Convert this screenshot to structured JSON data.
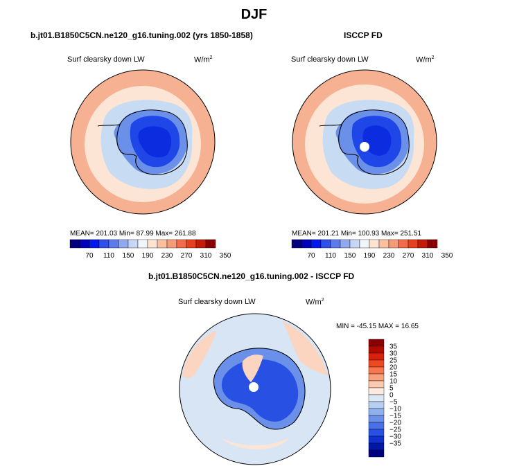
{
  "main_title": "DJF",
  "panels": [
    {
      "title": "b.jt01.B1850C5CN.ne120_g16.tuning.002 (yrs 1850-1858)",
      "field_label": "Surf clearsky down LW",
      "units_base": "W/m",
      "units_exp": "2",
      "stats": "MEAN= 201.03   Min=  87.99   Max= 261.88"
    },
    {
      "title": "ISCCP FD",
      "field_label": "Surf clearsky down LW",
      "units_base": "W/m",
      "units_exp": "2",
      "stats": "MEAN= 201.21   Min= 100.93   Max= 251.51"
    },
    {
      "title": "b.jt01.B1850C5CN.ne120_g16.tuning.002 - ISCCP FD",
      "field_label": "Surf clearsky down LW",
      "units_base": "W/m",
      "units_exp": "2",
      "stats": "MIN = -45.15  MAX =  16.65"
    }
  ],
  "colorbar_main": {
    "colors": [
      "#00007f",
      "#0000b8",
      "#0018e8",
      "#2e4fe8",
      "#5a7de8",
      "#8fa8ee",
      "#c6d6f4",
      "#f1f5fb",
      "#fde3d2",
      "#fbbf9e",
      "#f79b77",
      "#f26d47",
      "#e8401f",
      "#c51b0a",
      "#8b0000"
    ],
    "labels": [
      "70",
      "110",
      "150",
      "190",
      "230",
      "270",
      "310",
      "350"
    ]
  },
  "colorbar_diff": {
    "colors": [
      "#8b0000",
      "#b30a00",
      "#d8200b",
      "#ee4a22",
      "#f6764e",
      "#f9a07f",
      "#fbc8b0",
      "#fdeadf",
      "#dde8f6",
      "#b8cef1",
      "#90b0ee",
      "#6a90ea",
      "#4870e7",
      "#2850e3",
      "#1030cf",
      "#0018a8",
      "#00007f"
    ],
    "labels": [
      "35",
      "30",
      "25",
      "20",
      "15",
      "10",
      "5",
      "0",
      "−5",
      "−10",
      "−15",
      "−20",
      "−25",
      "−30",
      "−35"
    ]
  },
  "colors": {
    "coast": "#000000",
    "ocean_outer": "#f6b193",
    "ocean_mid": "#fde5d6",
    "ocean_inner": "#c7dbf3",
    "land_edge": "#6a90ea",
    "land_core": "#1f47e8",
    "land_deep": "#0c2ce0",
    "pole_hole": "#ffffff",
    "diff_bg": "#d7e5f5",
    "diff_pos": "#fbd5c0"
  }
}
